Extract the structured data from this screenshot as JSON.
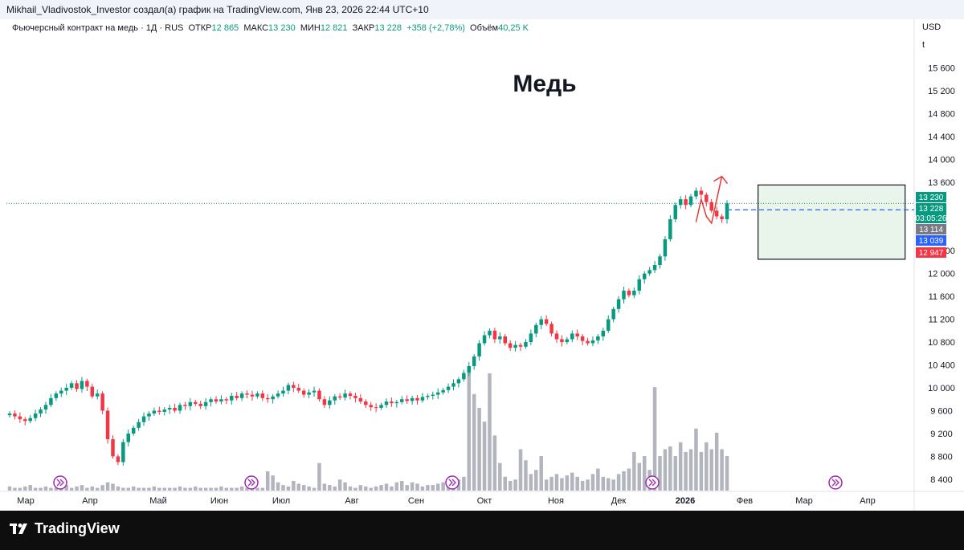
{
  "header": {
    "attribution": "Mikhail_Vladivostok_Investor создал(а) график на TradingView.com, Янв 23, 2026 22:44 UTC+10"
  },
  "legend": {
    "symbol": "Фьючерсный контракт на медь · 1Д · RUS",
    "open_label": "ОТКР",
    "open": "12 865",
    "high_label": "МАКС",
    "high": "13 230",
    "low_label": "МИН",
    "low": "12 821",
    "close_label": "ЗАКР",
    "close": "13 228",
    "change": "+358 (+2,78%)",
    "volume_label": "Объём",
    "volume": "40,25 K"
  },
  "scale": {
    "currency": "USD",
    "unit": "t"
  },
  "chart_data": {
    "type": "candlestick",
    "title": "Медь",
    "ylim": [
      8300,
      16000
    ],
    "y_ticks": [
      8400,
      8800,
      9200,
      9600,
      10000,
      10400,
      10800,
      11200,
      11600,
      12000,
      12400,
      13600,
      14000,
      14400,
      14800,
      15200,
      15600
    ],
    "y_tick_labels": [
      "8 400",
      "8 800",
      "9 200",
      "9 600",
      "10 000",
      "10 400",
      "10 800",
      "11 200",
      "11 600",
      "12 000",
      "12 400",
      "13 600",
      "14 000",
      "14 400",
      "14 800",
      "15 200",
      "15 600"
    ],
    "x_labels": [
      "Мар",
      "Апр",
      "Май",
      "Июн",
      "Июл",
      "Авг",
      "Сен",
      "Окт",
      "Ноя",
      "Дек",
      "2026",
      "Фев",
      "Мар",
      "Апр"
    ],
    "price_labels": [
      {
        "text": "13 230",
        "value": 13230,
        "color": "#089981"
      },
      {
        "text": "13 228",
        "value": 13228,
        "color": "#089981"
      },
      {
        "text": "03:05:26",
        "value": 13228,
        "color": "#089981"
      },
      {
        "text": "13 114",
        "value": 13114,
        "color": "#787b86"
      },
      {
        "text": "13 039",
        "value": 13039,
        "color": "#2962ff"
      },
      {
        "text": "12 947",
        "value": 12947,
        "color": "#f23645"
      }
    ],
    "dashed_level": 13114,
    "range_box": {
      "x0": 0.828,
      "x1": 0.99,
      "y_low": 12250,
      "y_high": 13550
    },
    "series": [
      {
        "name": "price",
        "values": [
          9550,
          9500,
          9450,
          9420,
          9470,
          9550,
          9620,
          9700,
          9820,
          9900,
          9950,
          10000,
          10080,
          9980,
          10120,
          10020,
          9850,
          9900,
          9600,
          9100,
          8800,
          8700,
          9050,
          9200,
          9300,
          9400,
          9500,
          9550,
          9600,
          9580,
          9620,
          9650,
          9600,
          9700,
          9680,
          9750,
          9720,
          9680,
          9750,
          9800,
          9760,
          9800,
          9780,
          9860,
          9820,
          9900,
          9880,
          9850,
          9900,
          9820,
          9800,
          9850,
          9900,
          9950,
          10050,
          10000,
          9950,
          9880,
          9920,
          9950,
          9800,
          9700,
          9780,
          9850,
          9830,
          9900,
          9860,
          9820,
          9760,
          9700,
          9660,
          9650,
          9700,
          9760,
          9730,
          9750,
          9800,
          9770,
          9820,
          9780,
          9840,
          9860,
          9880,
          9920,
          9960,
          10020,
          10080,
          10150,
          10260,
          10380,
          10550,
          10780,
          10920,
          11000,
          10850,
          10900,
          10780,
          10700,
          10750,
          10720,
          10800,
          10950,
          11100,
          11200,
          11120,
          10950,
          10850,
          10800,
          10850,
          10950,
          10900,
          10820,
          10780,
          10830,
          10900,
          11000,
          11200,
          11380,
          11550,
          11700,
          11620,
          11700,
          11900,
          12000,
          12060,
          12150,
          12300,
          12600,
          12950,
          13200,
          13300,
          13200,
          13350,
          13450,
          13380,
          13250,
          13100,
          13000,
          12950,
          13228
        ]
      },
      {
        "name": "volume",
        "values": [
          3,
          2,
          2,
          3,
          4,
          2,
          2,
          3,
          2,
          2,
          3,
          4,
          2,
          3,
          4,
          2,
          3,
          2,
          4,
          6,
          5,
          3,
          2,
          2,
          3,
          2,
          2,
          2,
          3,
          2,
          2,
          2,
          2,
          3,
          2,
          2,
          3,
          2,
          2,
          2,
          2,
          3,
          2,
          2,
          2,
          3,
          2,
          2,
          2,
          2,
          14,
          11,
          6,
          4,
          3,
          7,
          5,
          4,
          3,
          2,
          20,
          5,
          4,
          3,
          8,
          6,
          3,
          2,
          4,
          3,
          2,
          3,
          4,
          5,
          3,
          6,
          7,
          4,
          6,
          5,
          3,
          4,
          4,
          5,
          6,
          5,
          4,
          8,
          10,
          85,
          70,
          60,
          50,
          85,
          40,
          20,
          10,
          7,
          8,
          30,
          22,
          12,
          15,
          25,
          8,
          10,
          12,
          9,
          11,
          13,
          10,
          7,
          8,
          12,
          16,
          10,
          9,
          8,
          12,
          14,
          16,
          28,
          20,
          25,
          15,
          75,
          25,
          30,
          32,
          25,
          35,
          28,
          30,
          45,
          28,
          35,
          30,
          42,
          30,
          25
        ]
      }
    ],
    "annotations": {
      "start_index": 133,
      "points": [
        [
          133,
          12900
        ],
        [
          134,
          13300
        ],
        [
          135,
          13000
        ],
        [
          136,
          12880
        ],
        [
          138,
          13700
        ]
      ]
    }
  }
}
